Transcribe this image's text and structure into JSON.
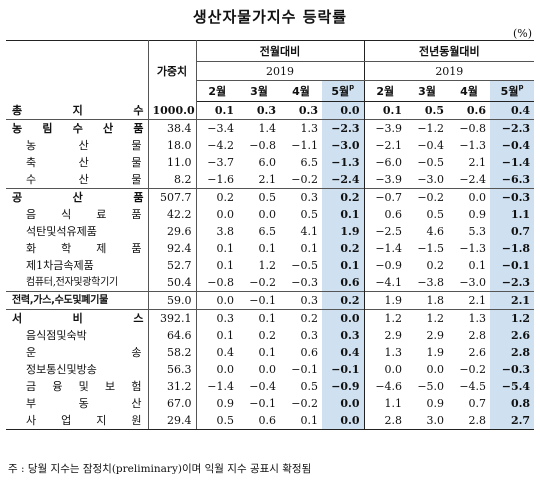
{
  "title": "생산자물가지수 등락률",
  "unit": "(%)",
  "header": {
    "weight": "가중치",
    "mom": "전월대비",
    "yoy": "전년동월대비",
    "year": "2019",
    "months": [
      "2월",
      "3월",
      "4월",
      "5월"
    ],
    "prelim_mark": "p"
  },
  "highlight_color": "#cfe0f0",
  "rows": [
    {
      "label": "총 지 수",
      "level": 1,
      "weight": "1000.0",
      "mom": [
        "0.1",
        "0.3",
        "0.3",
        "0.0"
      ],
      "yoy": [
        "0.1",
        "0.5",
        "0.6",
        "0.4"
      ]
    },
    {
      "label": "농 림 수 산 품",
      "level": 1,
      "weight": "38.4",
      "mom": [
        "−3.4",
        "1.4",
        "1.3",
        "−2.3"
      ],
      "yoy": [
        "−3.9",
        "−1.2",
        "−0.8",
        "−2.3"
      ]
    },
    {
      "label": "농 산 물",
      "level": 2,
      "weight": "18.0",
      "mom": [
        "−4.2",
        "−0.8",
        "−1.1",
        "−3.0"
      ],
      "yoy": [
        "−2.1",
        "−0.4",
        "−1.3",
        "−0.4"
      ]
    },
    {
      "label": "축 산 물",
      "level": 2,
      "weight": "11.0",
      "mom": [
        "−3.7",
        "6.0",
        "6.5",
        "−1.3"
      ],
      "yoy": [
        "−6.0",
        "−0.5",
        "2.1",
        "−1.4"
      ]
    },
    {
      "label": "수 산 물",
      "level": 2,
      "weight": "8.2",
      "mom": [
        "−1.6",
        "2.1",
        "−0.2",
        "−2.4"
      ],
      "yoy": [
        "−3.9",
        "−3.0",
        "−2.4",
        "−6.3"
      ]
    },
    {
      "label": "공 산 품",
      "level": 1,
      "weight": "507.7",
      "mom": [
        "0.2",
        "0.5",
        "0.3",
        "0.2"
      ],
      "yoy": [
        "−0.7",
        "−0.2",
        "0.0",
        "−0.3"
      ]
    },
    {
      "label": "음 식 료 품",
      "level": 2,
      "weight": "42.2",
      "mom": [
        "0.0",
        "0.0",
        "0.5",
        "0.1"
      ],
      "yoy": [
        "0.6",
        "0.5",
        "0.9",
        "1.1"
      ]
    },
    {
      "label": "석탄및석유제품",
      "level": 2,
      "weight": "29.6",
      "mom": [
        "3.8",
        "6.5",
        "4.1",
        "1.9"
      ],
      "yoy": [
        "−2.5",
        "4.6",
        "5.3",
        "0.7"
      ]
    },
    {
      "label": "화 학 제 품",
      "level": 2,
      "weight": "92.4",
      "mom": [
        "0.1",
        "0.1",
        "0.1",
        "0.2"
      ],
      "yoy": [
        "−1.4",
        "−1.5",
        "−1.3",
        "−1.8"
      ]
    },
    {
      "label": "제1차금속제품",
      "level": 2,
      "weight": "52.7",
      "mom": [
        "0.1",
        "1.2",
        "−0.5",
        "0.1"
      ],
      "yoy": [
        "−0.9",
        "0.2",
        "0.1",
        "−0.1"
      ]
    },
    {
      "label": "컴퓨터,전자및광학기기",
      "level": 2,
      "weight": "50.4",
      "mom": [
        "−0.8",
        "−0.2",
        "−0.3",
        "0.6"
      ],
      "yoy": [
        "−4.1",
        "−3.8",
        "−3.0",
        "−2.3"
      ]
    },
    {
      "label": "전력,가스,수도및폐기물",
      "level": 1,
      "weight": "59.0",
      "mom": [
        "0.0",
        "−0.1",
        "0.3",
        "0.2"
      ],
      "yoy": [
        "1.9",
        "1.8",
        "2.1",
        "2.1"
      ]
    },
    {
      "label": "서 비 스",
      "level": 1,
      "weight": "392.1",
      "mom": [
        "0.3",
        "0.1",
        "0.2",
        "0.0"
      ],
      "yoy": [
        "1.2",
        "1.2",
        "1.3",
        "1.2"
      ]
    },
    {
      "label": "음식점및숙박",
      "level": 2,
      "weight": "64.6",
      "mom": [
        "0.1",
        "0.2",
        "0.3",
        "0.3"
      ],
      "yoy": [
        "2.9",
        "2.9",
        "2.8",
        "2.6"
      ]
    },
    {
      "label": "운 송",
      "level": 2,
      "weight": "58.2",
      "mom": [
        "0.4",
        "0.1",
        "0.6",
        "0.4"
      ],
      "yoy": [
        "1.3",
        "1.9",
        "2.6",
        "2.8"
      ]
    },
    {
      "label": "정보통신및방송",
      "level": 2,
      "weight": "56.3",
      "mom": [
        "0.0",
        "0.0",
        "−0.1",
        "−0.1"
      ],
      "yoy": [
        "0.0",
        "0.0",
        "−0.2",
        "−0.3"
      ]
    },
    {
      "label": "금 융 및 보 험",
      "level": 2,
      "weight": "31.2",
      "mom": [
        "−1.4",
        "−0.4",
        "0.5",
        "−0.9"
      ],
      "yoy": [
        "−4.6",
        "−5.0",
        "−4.5",
        "−5.4"
      ]
    },
    {
      "label": "부 동 산",
      "level": 2,
      "weight": "67.0",
      "mom": [
        "0.9",
        "−0.1",
        "−0.2",
        "0.0"
      ],
      "yoy": [
        "1.1",
        "0.9",
        "0.7",
        "0.8"
      ]
    },
    {
      "label": "사 업 지 원",
      "level": 2,
      "weight": "29.4",
      "mom": [
        "0.5",
        "0.6",
        "0.1",
        "0.0"
      ],
      "yoy": [
        "2.8",
        "3.0",
        "2.8",
        "2.7"
      ]
    }
  ],
  "note": "주 : 당월 지수는 잠정치(preliminary)이며 익월 지수 공표시 확정됨"
}
